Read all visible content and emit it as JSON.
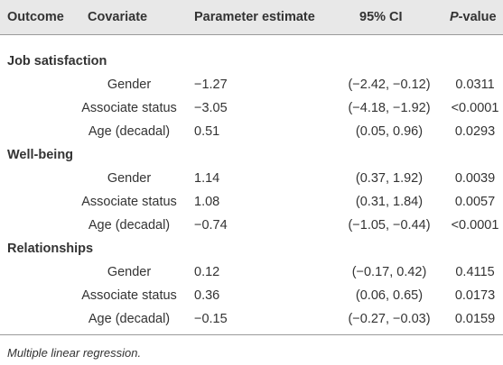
{
  "table": {
    "header": [
      "Outcome",
      "Covariate",
      "Parameter estimate",
      "95% CI",
      "P-value"
    ],
    "groups": [
      {
        "outcome": "Job satisfaction",
        "rows": [
          [
            "Gender",
            "−1.27",
            "(−2.42, −0.12)",
            "0.0311"
          ],
          [
            "Associate status",
            "−3.05",
            "(−4.18, −1.92)",
            "<0.0001"
          ],
          [
            "Age (decadal)",
            "0.51",
            "(0.05, 0.96)",
            "0.0293"
          ]
        ]
      },
      {
        "outcome": "Well-being",
        "rows": [
          [
            "Gender",
            "1.14",
            "(0.37, 1.92)",
            "0.0039"
          ],
          [
            "Associate status",
            "1.08",
            "(0.31, 1.84)",
            "0.0057"
          ],
          [
            "Age (decadal)",
            "−0.74",
            "(−1.05, −0.44)",
            "<0.0001"
          ]
        ]
      },
      {
        "outcome": "Relationships",
        "rows": [
          [
            "Gender",
            "0.12",
            "(−0.17, 0.42)",
            "0.4115"
          ],
          [
            "Associate status",
            "0.36",
            "(0.06, 0.65)",
            "0.0173"
          ],
          [
            "Age (decadal)",
            "−0.15",
            "(−0.27, −0.03)",
            "0.0159"
          ]
        ]
      }
    ]
  },
  "footnote": "Multiple linear regression."
}
